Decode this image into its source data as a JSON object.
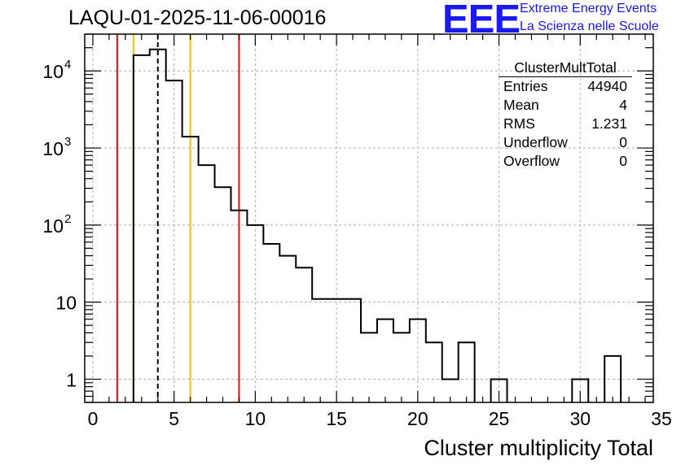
{
  "title": "LAQU-01-2025-11-06-00016",
  "logo": {
    "mark": "EEE",
    "line1": "Extreme Energy Events",
    "line2": "La Scienza nelle Scuole"
  },
  "stats_box": {
    "name": "ClusterMultTotal",
    "rows": [
      {
        "label": "Entries",
        "value": "44940"
      },
      {
        "label": "Mean",
        "value": "4"
      },
      {
        "label": "RMS",
        "value": "1.231"
      },
      {
        "label": "Underflow",
        "value": "0"
      },
      {
        "label": "Overflow",
        "value": "0"
      }
    ]
  },
  "chart_data": {
    "type": "histogram",
    "xlabel": "Cluster multiplicity Total",
    "ylabel": "",
    "xlim": [
      -0.5,
      34.5
    ],
    "ylim": [
      0.5,
      30000
    ],
    "yscale": "log",
    "grid": true,
    "x_ticks": [
      0,
      5,
      10,
      15,
      20,
      25,
      30,
      35
    ],
    "y_ticks": [
      {
        "value": 1,
        "label": "1"
      },
      {
        "value": 10,
        "label": "10"
      },
      {
        "value": 100,
        "label": "10",
        "exp": "2"
      },
      {
        "value": 1000,
        "label": "10",
        "exp": "3"
      },
      {
        "value": 10000,
        "label": "10",
        "exp": "4"
      }
    ],
    "bin_width": 1,
    "bins": [
      {
        "x": 0,
        "count": 0
      },
      {
        "x": 1,
        "count": 0
      },
      {
        "x": 2,
        "count": 0
      },
      {
        "x": 3,
        "count": 16000
      },
      {
        "x": 4,
        "count": 19000
      },
      {
        "x": 5,
        "count": 7500
      },
      {
        "x": 6,
        "count": 1400
      },
      {
        "x": 7,
        "count": 600
      },
      {
        "x": 8,
        "count": 310
      },
      {
        "x": 9,
        "count": 155
      },
      {
        "x": 10,
        "count": 100
      },
      {
        "x": 11,
        "count": 57
      },
      {
        "x": 12,
        "count": 40
      },
      {
        "x": 13,
        "count": 28
      },
      {
        "x": 14,
        "count": 11
      },
      {
        "x": 15,
        "count": 11
      },
      {
        "x": 16,
        "count": 11
      },
      {
        "x": 17,
        "count": 4
      },
      {
        "x": 18,
        "count": 6
      },
      {
        "x": 19,
        "count": 4
      },
      {
        "x": 20,
        "count": 6
      },
      {
        "x": 21,
        "count": 3
      },
      {
        "x": 22,
        "count": 1
      },
      {
        "x": 23,
        "count": 3
      },
      {
        "x": 24,
        "count": 0
      },
      {
        "x": 25,
        "count": 1
      },
      {
        "x": 26,
        "count": 0
      },
      {
        "x": 27,
        "count": 0
      },
      {
        "x": 28,
        "count": 0
      },
      {
        "x": 29,
        "count": 0
      },
      {
        "x": 30,
        "count": 1
      },
      {
        "x": 31,
        "count": 0
      },
      {
        "x": 32,
        "count": 2
      },
      {
        "x": 33,
        "count": 0
      }
    ],
    "markers": [
      {
        "x": 1.5,
        "color": "#dd1111",
        "style": "solid"
      },
      {
        "x": 2.5,
        "color": "#f2c200",
        "style": "solid"
      },
      {
        "x": 4,
        "color": "#000000",
        "style": "dashed"
      },
      {
        "x": 6,
        "color": "#f2c200",
        "style": "solid"
      },
      {
        "x": 9,
        "color": "#dd1111",
        "style": "solid"
      }
    ],
    "colors": {
      "line": "#000000",
      "grid": "#b0b0b0"
    }
  }
}
